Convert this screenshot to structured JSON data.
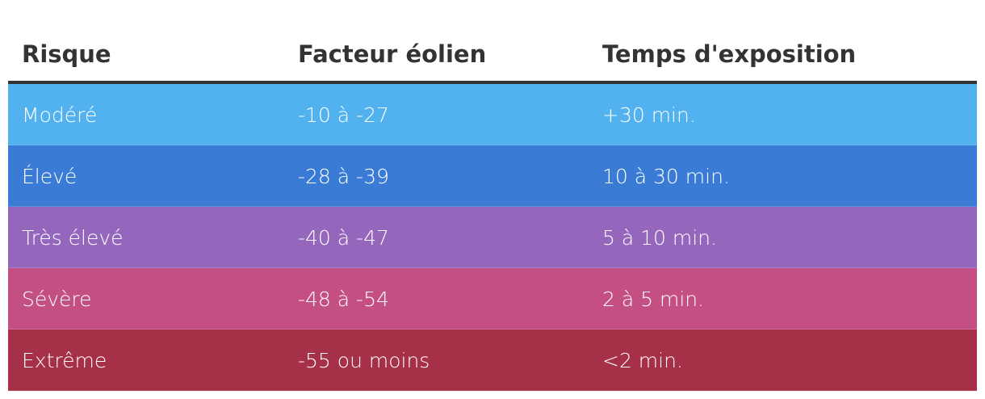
{
  "table": {
    "header": [
      "Risque",
      "Facteur éolien",
      "Temps d'exposition"
    ],
    "rows": [
      [
        "Modéré",
        "-10 à -27",
        "+30 min."
      ],
      [
        "Élevé",
        "-28 à -39",
        "10 à 30 min."
      ],
      [
        "Très élevé",
        "-40 à -47",
        "5 à 10 min."
      ],
      [
        "Sévère",
        "-48 à -54",
        "2 à 5 min."
      ],
      [
        "Extrême",
        "-55 ou moins",
        "<2 min."
      ]
    ]
  }
}
